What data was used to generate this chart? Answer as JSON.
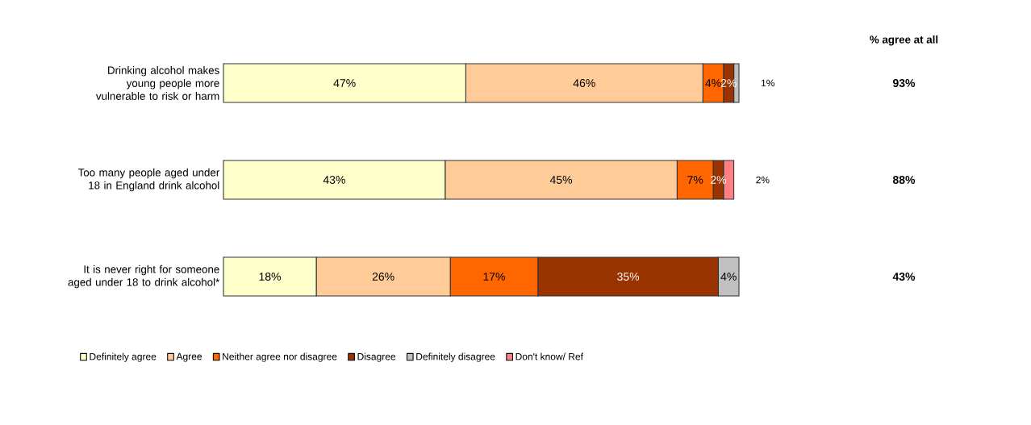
{
  "chart_data": {
    "type": "bar",
    "orientation": "horizontal",
    "stacked": true,
    "legend": "bottom",
    "tick_labels": "y",
    "categories": [
      "Drinking alcohol makes young people more vulnerable to risk or harm",
      "Too many people aged under 18 in England drink alcohol",
      "It is never right for someone aged under 18 to drink alcohol*"
    ],
    "series": [
      {
        "name": "Definitely agree",
        "color": "#ffffcc",
        "values": [
          47,
          43,
          18
        ],
        "value_labels": [
          "47%",
          "43%",
          "18%"
        ]
      },
      {
        "name": "Agree",
        "color": "#ffcc99",
        "values": [
          46,
          45,
          26
        ],
        "value_labels": [
          "46%",
          "45%",
          "26%"
        ]
      },
      {
        "name": "Neither agree nor disagree",
        "color": "#ff6600",
        "values": [
          4,
          7,
          17
        ],
        "value_labels": [
          "4%",
          "7%",
          "17%"
        ]
      },
      {
        "name": "Disagree",
        "color": "#993300",
        "values": [
          2,
          2,
          35
        ],
        "value_labels": [
          "2%",
          "2%",
          "35%"
        ]
      },
      {
        "name": "Definitely disagree",
        "color": "#c0c0c0",
        "values": [
          1,
          null,
          4
        ],
        "value_labels": [
          "1%",
          null,
          "4%"
        ]
      },
      {
        "name": "Don't know/ Ref",
        "color": "#ff8080",
        "values": [
          null,
          2,
          null
        ],
        "value_labels": [
          null,
          "2%",
          null
        ]
      }
    ],
    "annotations": [
      "% agree at all",
      "93%",
      "88%",
      "43%"
    ]
  }
}
